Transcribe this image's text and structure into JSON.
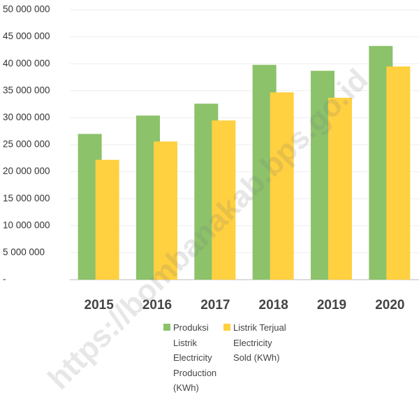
{
  "chart_data": {
    "type": "bar",
    "categories": [
      "2015",
      "2016",
      "2017",
      "2018",
      "2019",
      "2020"
    ],
    "series": [
      {
        "name": "Produksi Listrik Electricity Production (KWh)",
        "color": "#8cc26a",
        "values": [
          27000000,
          30400000,
          32600000,
          39800000,
          38700000,
          43300000
        ]
      },
      {
        "name": "Listrik Terjual Electricity Sold (KWh)",
        "color": "#ffd040",
        "values": [
          22200000,
          25600000,
          29500000,
          34700000,
          33700000,
          39500000
        ]
      }
    ],
    "ylim": [
      0,
      50000000
    ],
    "yticks": [
      {
        "value": 0,
        "label": "-"
      },
      {
        "value": 5000000,
        "label": "5 000 000"
      },
      {
        "value": 10000000,
        "label": "10 000 000"
      },
      {
        "value": 15000000,
        "label": "15 000 000"
      },
      {
        "value": 20000000,
        "label": "20 000 000"
      },
      {
        "value": 25000000,
        "label": "25 000 000"
      },
      {
        "value": 30000000,
        "label": "30 000 000"
      },
      {
        "value": 35000000,
        "label": "35 000 000"
      },
      {
        "value": 40000000,
        "label": "40 000 000"
      },
      {
        "value": 45000000,
        "label": "45 000 000"
      },
      {
        "value": 50000000,
        "label": "50 000 000"
      }
    ],
    "grid": true,
    "legend": "bottom",
    "watermark": "https://bombanakab.bps.go.id"
  }
}
